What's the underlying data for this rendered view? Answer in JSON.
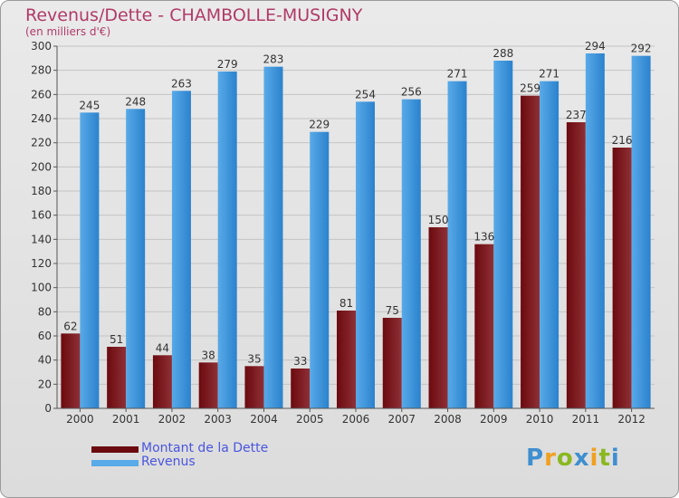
{
  "title": "Revenus/Dette - CHAMBOLLE-MUSIGNY",
  "subtitle": "(en milliers d'€)",
  "colors": {
    "dette": "#6b0a0f",
    "dette_light": "#8e3036",
    "revenus": "#2b82cd",
    "revenus_light": "#58aae8",
    "grid": "#c4c4c4",
    "axis_text": "#333333"
  },
  "legend": {
    "dette_label": "Montant de la Dette",
    "revenus_label": "Revenus"
  },
  "logo": {
    "letters": [
      "P",
      "r",
      "o",
      "x",
      "i",
      "t",
      "i"
    ],
    "letter_colors": [
      "#3f8fd0",
      "#f0a020",
      "#8ab820",
      "#3f8fd0",
      "#f0a020",
      "#8ab820",
      "#3f8fd0"
    ]
  },
  "chart_data": {
    "type": "bar",
    "title": "Revenus/Dette - CHAMBOLLE-MUSIGNY",
    "ylabel": "(en milliers d'€)",
    "xlabel": "",
    "categories": [
      "2000",
      "2001",
      "2002",
      "2003",
      "2004",
      "2005",
      "2006",
      "2007",
      "2008",
      "2009",
      "2010",
      "2011",
      "2012"
    ],
    "series": [
      {
        "name": "Montant de la Dette",
        "values": [
          62,
          51,
          44,
          38,
          35,
          33,
          81,
          75,
          150,
          136,
          259,
          237,
          216
        ]
      },
      {
        "name": "Revenus",
        "values": [
          245,
          248,
          263,
          279,
          283,
          229,
          254,
          256,
          271,
          288,
          271,
          294,
          292
        ]
      }
    ],
    "ylim": [
      0,
      300
    ],
    "yticks": [
      0,
      20,
      40,
      60,
      80,
      100,
      120,
      140,
      160,
      180,
      200,
      220,
      240,
      260,
      280,
      300
    ],
    "grid": true,
    "legend_position": "bottom-left"
  }
}
